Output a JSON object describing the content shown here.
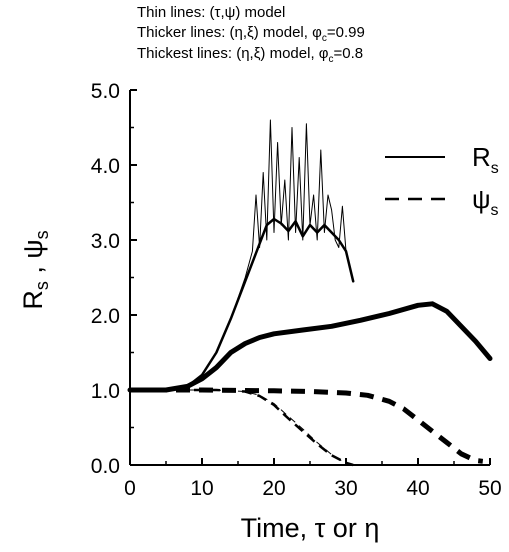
{
  "annotations": [
    {
      "prefix": "Thin lines:  ",
      "model": "(τ,ψ) model",
      "param": "",
      "value": ""
    },
    {
      "prefix": "Thicker lines:  ",
      "model": "(η,ξ) model, ",
      "param": "φ",
      "value": "=0.99"
    },
    {
      "prefix": "Thickest lines:  ",
      "model": "(η,ξ) model, ",
      "param": "φ",
      "value": "=0.8"
    }
  ],
  "annotation_subscript": "c",
  "chart_data": {
    "type": "line",
    "xlabel": "Time, τ or η",
    "ylabel": "Rs , ψs",
    "ylabel_parts": {
      "a": "R",
      "a_sub": "s",
      "sep": " , ",
      "b": "ψ",
      "b_sub": "s"
    },
    "xlim": [
      0,
      50
    ],
    "ylim": [
      0,
      5.0
    ],
    "xticks": [
      "0",
      "10",
      "20",
      "30",
      "40",
      "50"
    ],
    "yticks": [
      "0.0",
      "1.0",
      "2.0",
      "3.0",
      "4.0",
      "5.0"
    ],
    "grid": false,
    "legend_placement": "right",
    "legend": [
      {
        "symbol": "R",
        "sub": "s",
        "style": "solid"
      },
      {
        "symbol": "ψ",
        "sub": "s",
        "style": "dashed"
      }
    ],
    "series": [
      {
        "variable": "Rs",
        "model": "(τ,ψ)",
        "weight": "thin",
        "x": [
          0,
          5,
          8,
          10,
          12,
          14,
          16,
          17,
          17.5,
          18,
          18.5,
          19,
          19.5,
          20,
          20.5,
          21,
          21.5,
          22,
          22.5,
          23,
          23.5,
          24,
          24.5,
          25,
          25.5,
          26,
          26.5,
          27,
          27.5,
          28,
          28.5,
          29,
          29.5,
          30
        ],
        "y": [
          1.0,
          1.0,
          1.05,
          1.2,
          1.5,
          1.95,
          2.5,
          2.85,
          3.6,
          2.9,
          3.9,
          3.0,
          4.6,
          3.1,
          4.3,
          3.2,
          3.8,
          3.0,
          4.5,
          3.1,
          4.1,
          3.0,
          4.55,
          3.2,
          3.6,
          3.0,
          4.2,
          3.1,
          3.6,
          3.4,
          3.0,
          2.9,
          3.45,
          2.85
        ]
      },
      {
        "variable": "Rs",
        "model": "(η,ξ) φc=0.99",
        "weight": "thicker",
        "x": [
          0,
          5,
          8,
          10,
          12,
          14,
          16,
          18,
          19,
          20,
          21,
          22,
          23,
          24,
          25,
          26,
          27,
          28,
          29,
          30,
          31
        ],
        "y": [
          1.0,
          1.0,
          1.05,
          1.2,
          1.5,
          1.95,
          2.45,
          2.95,
          3.2,
          3.28,
          3.22,
          3.12,
          3.25,
          3.05,
          3.2,
          3.1,
          3.2,
          3.1,
          3.0,
          2.85,
          2.45
        ]
      },
      {
        "variable": "Rs",
        "model": "(η,ξ) φc=0.8",
        "weight": "thickest",
        "x": [
          0,
          5,
          8,
          10,
          12,
          14,
          16,
          18,
          20,
          24,
          28,
          32,
          36,
          40,
          42,
          44,
          46,
          48,
          50
        ],
        "y": [
          1.0,
          1.0,
          1.05,
          1.15,
          1.3,
          1.5,
          1.62,
          1.7,
          1.75,
          1.8,
          1.85,
          1.93,
          2.02,
          2.13,
          2.15,
          2.05,
          1.85,
          1.65,
          1.42
        ]
      },
      {
        "variable": "ψs",
        "model": "(τ,ψ)",
        "weight": "thin",
        "x": [
          0,
          8,
          12,
          16,
          18,
          20,
          22,
          24,
          26,
          28,
          30
        ],
        "y": [
          1.0,
          1.0,
          1.0,
          0.98,
          0.93,
          0.82,
          0.65,
          0.48,
          0.3,
          0.14,
          0.02
        ]
      },
      {
        "variable": "ψs",
        "model": "(η,ξ) φc=0.99",
        "weight": "thicker",
        "x": [
          0,
          8,
          12,
          16,
          18,
          20,
          22,
          24,
          26,
          28,
          30,
          31
        ],
        "y": [
          1.0,
          1.0,
          1.0,
          0.98,
          0.92,
          0.8,
          0.62,
          0.45,
          0.28,
          0.13,
          0.03,
          0.0
        ]
      },
      {
        "variable": "ψs",
        "model": "(η,ξ) φc=0.8",
        "weight": "thickest",
        "x": [
          0,
          10,
          20,
          25,
          30,
          33,
          36,
          38,
          40,
          42,
          44,
          46,
          48,
          49
        ],
        "y": [
          1.0,
          1.0,
          0.99,
          0.98,
          0.96,
          0.93,
          0.85,
          0.75,
          0.6,
          0.45,
          0.3,
          0.15,
          0.06,
          0.05
        ]
      }
    ]
  }
}
